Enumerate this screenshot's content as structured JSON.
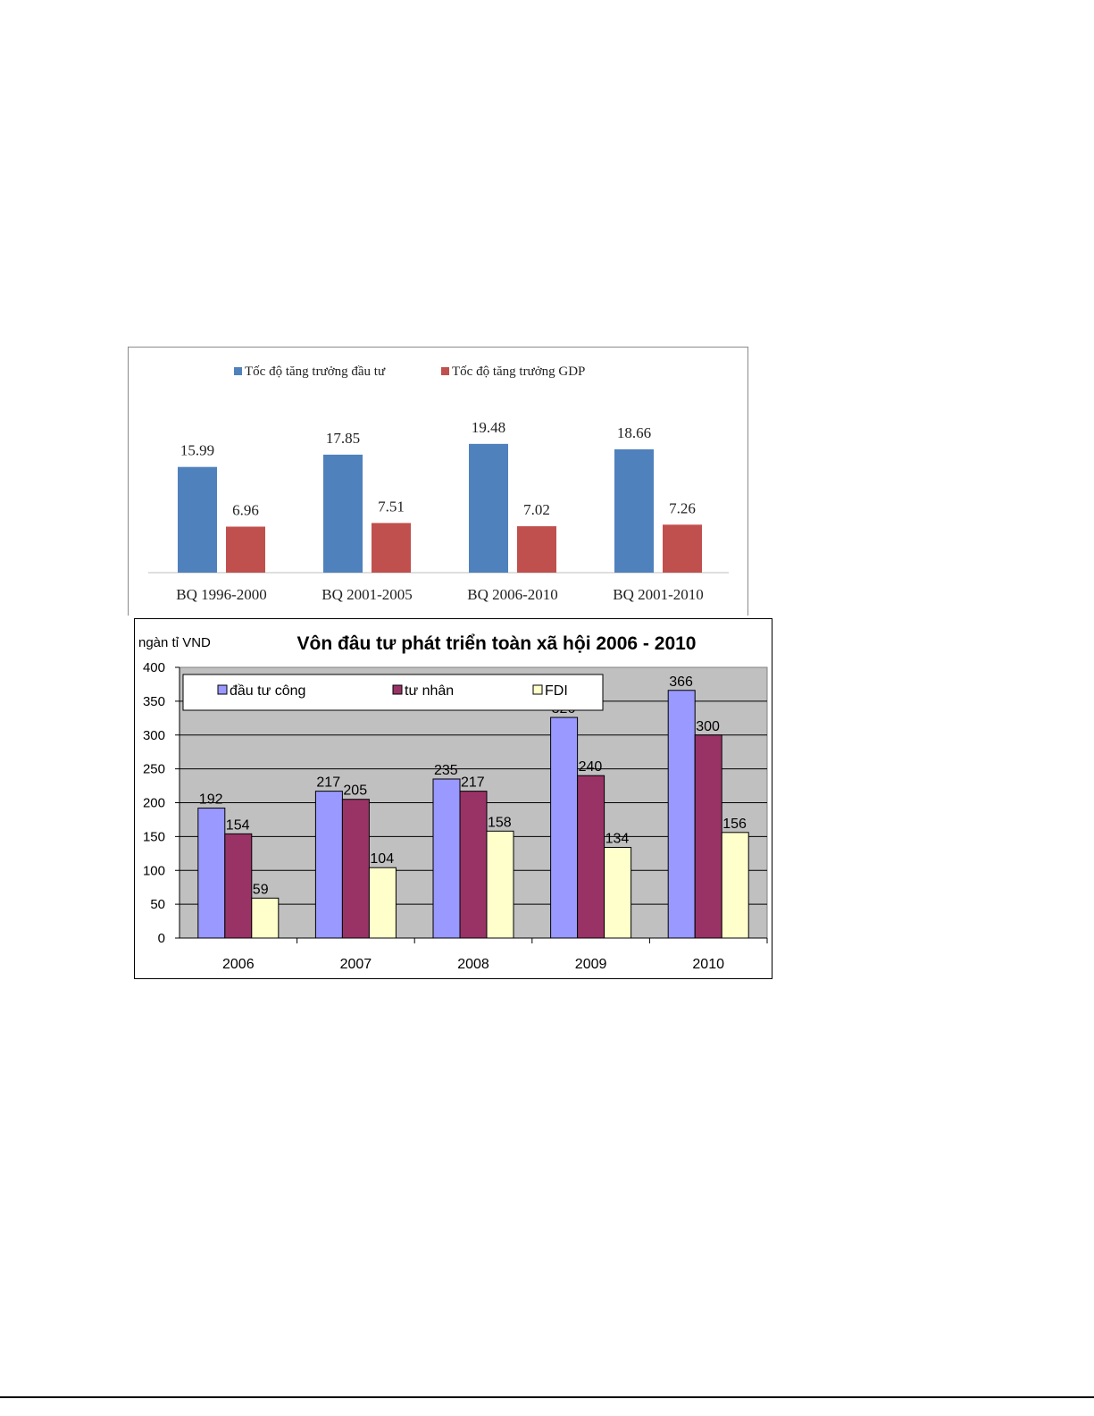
{
  "chart_data": [
    {
      "type": "bar",
      "title": "",
      "categories": [
        "BQ 1996-2000",
        "BQ 2001-2005",
        "BQ 2006-2010",
        "BQ 2001-2010"
      ],
      "series": [
        {
          "name": "Tốc độ tăng trưởng đầu tư",
          "color": "#4f81bd",
          "values": [
            15.99,
            17.85,
            19.48,
            18.66
          ],
          "labels": [
            "15.99",
            "17.85",
            "19.48",
            "18.66"
          ]
        },
        {
          "name": "Tốc độ tăng trưởng GDP",
          "color": "#c0504d",
          "values": [
            6.96,
            7.51,
            7.02,
            7.26
          ],
          "labels": [
            "6.96",
            "7.51",
            "7.02",
            "7.26"
          ]
        }
      ],
      "legend_position": "top",
      "grid": false,
      "ylim": [
        0,
        20
      ]
    },
    {
      "type": "bar",
      "title": "Vôn đâu tư phát triển toàn xã hội 2006 - 2010",
      "ylabel": "ngàn tỉ VND",
      "categories": [
        "2006",
        "2007",
        "2008",
        "2009",
        "2010"
      ],
      "series": [
        {
          "name": "đầu tư công",
          "color": "#9999ff",
          "values": [
            192,
            217,
            235,
            326,
            366
          ]
        },
        {
          "name": "tư nhân",
          "color": "#993366",
          "values": [
            154,
            205,
            217,
            240,
            300
          ]
        },
        {
          "name": "FDI",
          "color": "#ffffcc",
          "values": [
            59,
            104,
            158,
            134,
            156
          ]
        }
      ],
      "ylim": [
        0,
        400
      ],
      "yticks": [
        "0",
        "50",
        "100",
        "150",
        "200",
        "250",
        "300",
        "350",
        "400"
      ],
      "grid": true,
      "legend_position": "top-inside",
      "plot_background": "#c0c0c0"
    }
  ]
}
